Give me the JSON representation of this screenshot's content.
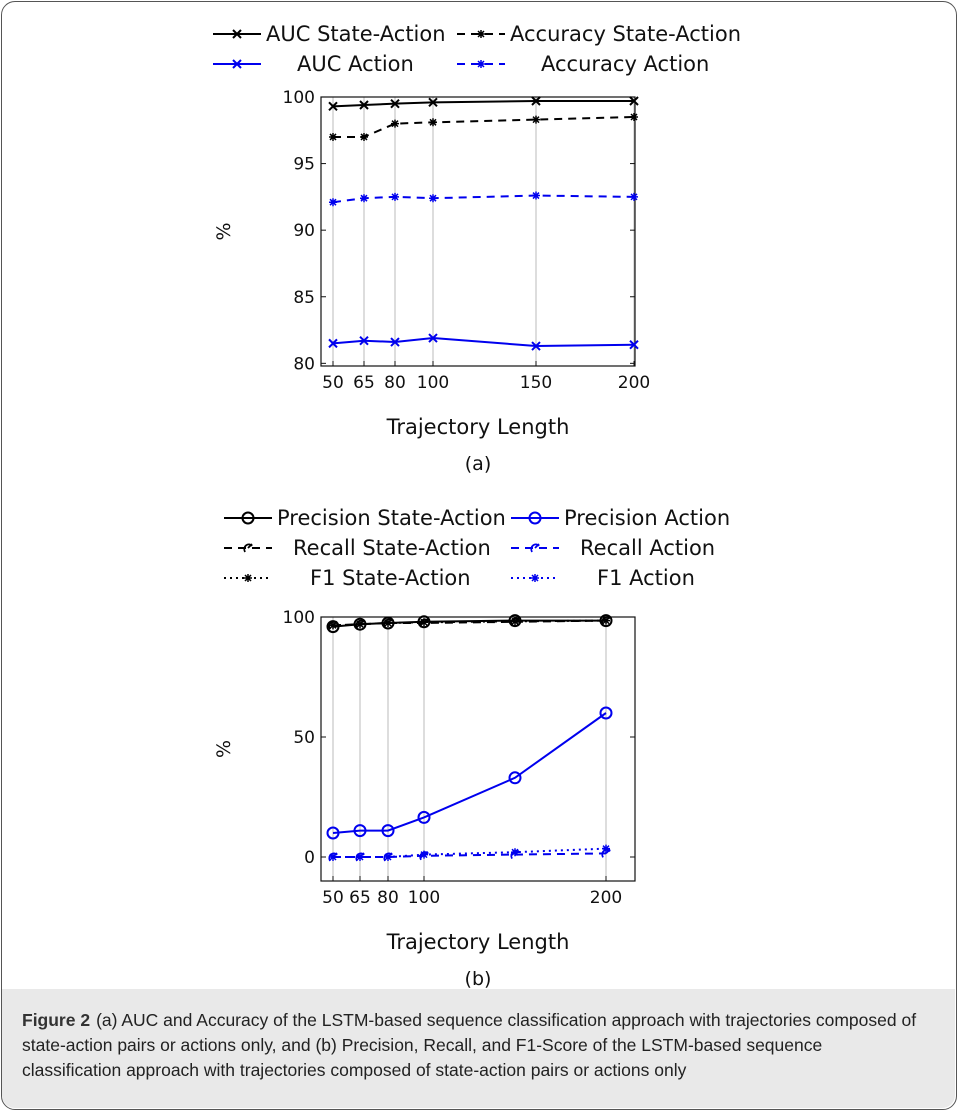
{
  "figure": {
    "label": "Figure 2",
    "caption": "(a) AUC and Accuracy of the LSTM-based sequence classification approach with trajectories composed of state-action pairs or actions only, and (b) Precision, Recall, and F1-Score of the LSTM-based sequence classification approach with trajectories composed of state-action pairs or actions only"
  },
  "chart_data": [
    {
      "type": "line",
      "sublabel": "(a)",
      "xlabel": "Trajectory Length",
      "ylabel": "%",
      "x": [
        50,
        65,
        80,
        100,
        150,
        200
      ],
      "xticks": [
        "50",
        "65",
        "80",
        "100",
        "150",
        "200"
      ],
      "yticks": [
        "80",
        "85",
        "90",
        "95",
        "100"
      ],
      "ylim": [
        79.8,
        100
      ],
      "grid": "vertical",
      "legend_placement": "top",
      "series": [
        {
          "name": "AUC State-Action",
          "values": [
            99.3,
            99.4,
            99.5,
            99.6,
            99.7,
            99.7
          ],
          "color": "#000000",
          "dash": "solid",
          "marker": "x"
        },
        {
          "name": "Accuracy State-Action",
          "values": [
            97.0,
            97.0,
            98.0,
            98.1,
            98.3,
            98.5
          ],
          "color": "#000000",
          "dash": "dashed",
          "marker": "star"
        },
        {
          "name": "AUC Action",
          "values": [
            81.5,
            81.7,
            81.6,
            81.9,
            81.3,
            81.4
          ],
          "color": "#0000ee",
          "dash": "solid",
          "marker": "x"
        },
        {
          "name": "Accuracy Action",
          "values": [
            92.1,
            92.4,
            92.5,
            92.4,
            92.6,
            92.5
          ],
          "color": "#0000ee",
          "dash": "dashed",
          "marker": "star"
        }
      ]
    },
    {
      "type": "line",
      "sublabel": "(b)",
      "xlabel": "Trajectory Length",
      "ylabel": "%",
      "x": [
        50,
        65,
        80,
        100,
        140,
        200
      ],
      "xticks": [
        "50",
        "65",
        "80",
        "100",
        "200"
      ],
      "xtick_values": [
        50,
        65,
        80,
        100,
        200
      ],
      "yticks": [
        "0",
        "50",
        "100"
      ],
      "ylim": [
        -10,
        100
      ],
      "grid": "vertical",
      "legend_placement": "top",
      "series": [
        {
          "name": "Precision State-Action",
          "values": [
            96,
            97,
            97.5,
            98,
            98.5,
            98.5
          ],
          "color": "#000000",
          "dash": "solid",
          "marker": "circle"
        },
        {
          "name": "Precision Action",
          "values": [
            10,
            11,
            11,
            16.5,
            33,
            60
          ],
          "color": "#0000ee",
          "dash": "solid",
          "marker": "circle"
        },
        {
          "name": "Recall State-Action",
          "values": [
            96.5,
            97,
            97.5,
            97.5,
            98,
            98.5
          ],
          "color": "#000000",
          "dash": "dashed",
          "marker": "swirl"
        },
        {
          "name": "Recall Action",
          "values": [
            0,
            0,
            0,
            0.5,
            1,
            1.5
          ],
          "color": "#0000ee",
          "dash": "dashed",
          "marker": "swirl"
        },
        {
          "name": "F1 State-Action",
          "values": [
            96.5,
            97,
            97.5,
            97.8,
            98.2,
            98.5
          ],
          "color": "#000000",
          "dash": "dotted",
          "marker": "star"
        },
        {
          "name": "F1 Action",
          "values": [
            0,
            0,
            0,
            1,
            2,
            3.5
          ],
          "color": "#0000ee",
          "dash": "dotted",
          "marker": "star"
        }
      ]
    }
  ]
}
